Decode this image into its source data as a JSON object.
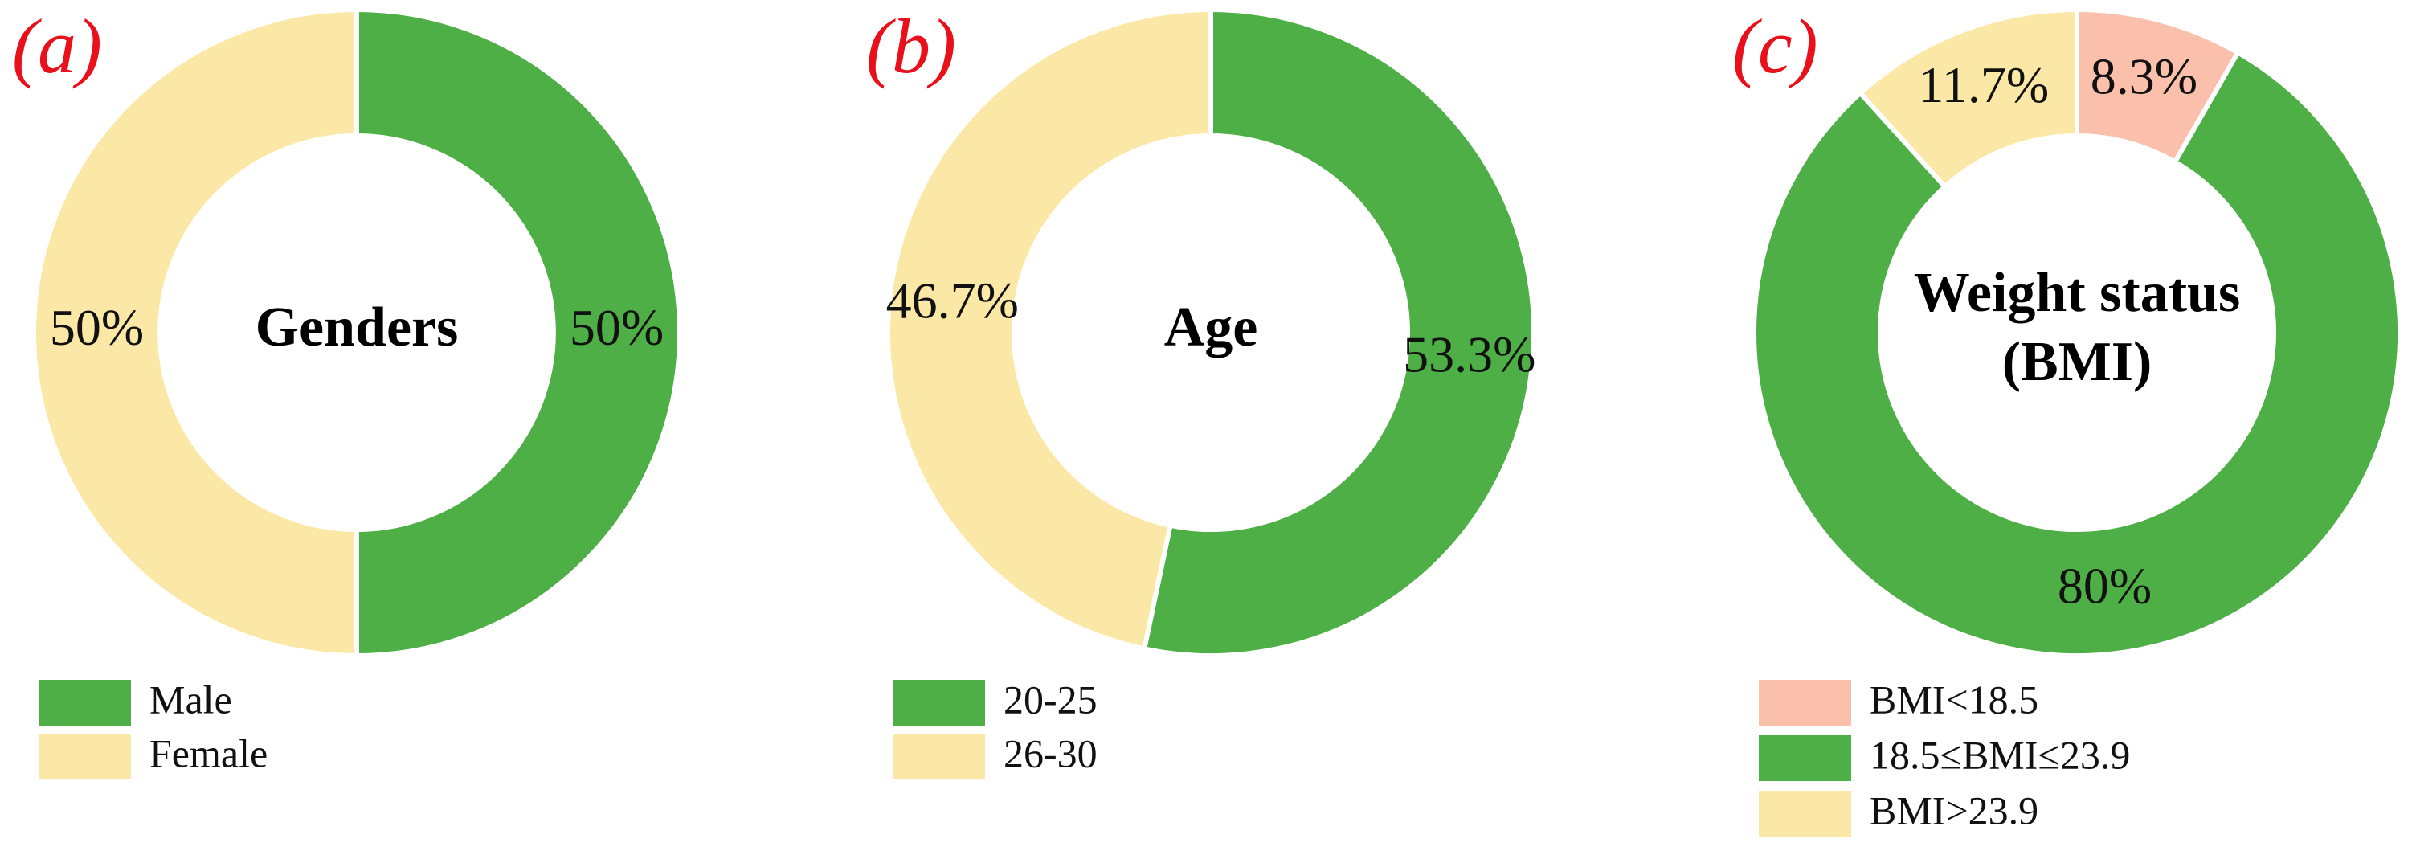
{
  "chart_data": [
    {
      "type": "pie",
      "panel_label": "(a)",
      "title": [
        "Genders"
      ],
      "categories": [
        "Male",
        "Female"
      ],
      "values": [
        50,
        50
      ],
      "colors": [
        "#4daf45",
        "#fce8a6"
      ]
    },
    {
      "type": "pie",
      "panel_label": "(b)",
      "title": [
        "Age"
      ],
      "categories": [
        "20-25",
        "26-30"
      ],
      "values": [
        53.3,
        46.7
      ],
      "colors": [
        "#4daf45",
        "#fce8a6"
      ]
    },
    {
      "type": "pie",
      "panel_label": "(c)",
      "title": [
        "Weight status",
        "(BMI)"
      ],
      "categories": [
        "BMI<18.5",
        "18.5≤BMI≤23.9",
        "BMI>23.9"
      ],
      "values": [
        8.3,
        80,
        11.7
      ],
      "colors": [
        "#fbc0ab",
        "#4daf45",
        "#fce8a6"
      ]
    }
  ]
}
